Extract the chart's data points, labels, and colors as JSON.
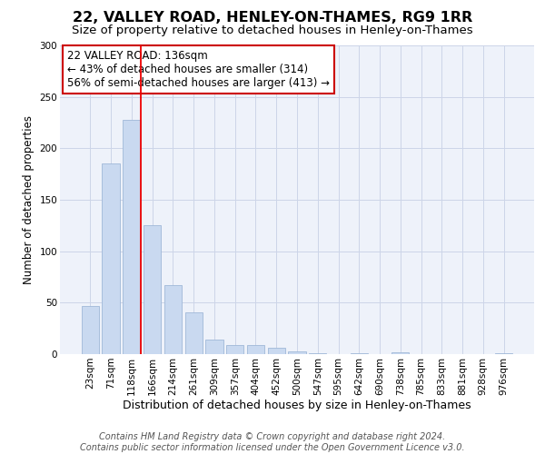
{
  "title1": "22, VALLEY ROAD, HENLEY-ON-THAMES, RG9 1RR",
  "title2": "Size of property relative to detached houses in Henley-on-Thames",
  "xlabel": "Distribution of detached houses by size in Henley-on-Thames",
  "ylabel": "Number of detached properties",
  "bar_labels": [
    "23sqm",
    "71sqm",
    "118sqm",
    "166sqm",
    "214sqm",
    "261sqm",
    "309sqm",
    "357sqm",
    "404sqm",
    "452sqm",
    "500sqm",
    "547sqm",
    "595sqm",
    "642sqm",
    "690sqm",
    "738sqm",
    "785sqm",
    "833sqm",
    "881sqm",
    "928sqm",
    "976sqm"
  ],
  "bar_values": [
    47,
    185,
    228,
    125,
    67,
    41,
    14,
    9,
    9,
    6,
    3,
    1,
    0,
    1,
    0,
    2,
    0,
    0,
    0,
    0,
    1
  ],
  "bar_color": "#c9d9f0",
  "bar_edge_color": "#a0b8d8",
  "vline_x": 2.425,
  "vline_color": "#ee0000",
  "annotation_text": "22 VALLEY ROAD: 136sqm\n← 43% of detached houses are smaller (314)\n56% of semi-detached houses are larger (413) →",
  "annotation_box_color": "#ffffff",
  "annotation_box_edge": "#cc0000",
  "ylim": [
    0,
    300
  ],
  "yticks": [
    0,
    50,
    100,
    150,
    200,
    250,
    300
  ],
  "grid_color": "#ccd5e8",
  "bg_color": "#eef2fa",
  "footer1": "Contains HM Land Registry data © Crown copyright and database right 2024.",
  "footer2": "Contains public sector information licensed under the Open Government Licence v3.0.",
  "title1_fontsize": 11.5,
  "title2_fontsize": 9.5,
  "xlabel_fontsize": 9,
  "ylabel_fontsize": 8.5,
  "tick_fontsize": 7.5,
  "annotation_fontsize": 8.5,
  "footer_fontsize": 7
}
